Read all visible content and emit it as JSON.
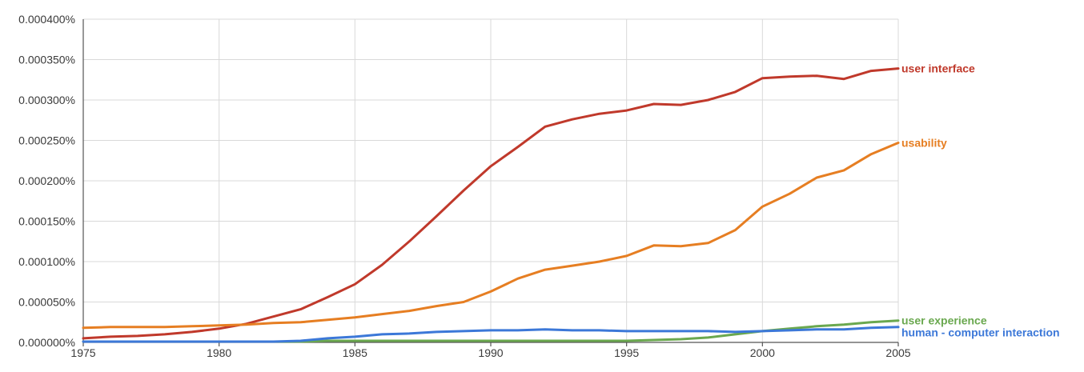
{
  "chart_data": {
    "type": "line",
    "title": "",
    "xlabel": "",
    "ylabel": "",
    "x": [
      1975,
      1976,
      1977,
      1978,
      1979,
      1980,
      1981,
      1982,
      1983,
      1984,
      1985,
      1986,
      1987,
      1988,
      1989,
      1990,
      1991,
      1992,
      1993,
      1994,
      1995,
      1996,
      1997,
      1998,
      1999,
      2000,
      2001,
      2002,
      2003,
      2004,
      2005
    ],
    "xlim": [
      1975,
      2005
    ],
    "ylim": [
      0,
      0.0004
    ],
    "x_ticks": [
      1975,
      1980,
      1985,
      1990,
      1995,
      2000,
      2005
    ],
    "x_tick_labels": [
      "1975",
      "1980",
      "1985",
      "1990",
      "1995",
      "2000",
      "2005"
    ],
    "y_ticks": [
      0,
      5e-05,
      0.0001,
      0.00015,
      0.0002,
      0.00025,
      0.0003,
      0.00035,
      0.0004
    ],
    "y_tick_labels": [
      "0.000000%",
      "0.000050%",
      "0.000100%",
      "0.000150%",
      "0.000200%",
      "0.000250%",
      "0.000300%",
      "0.000350%",
      "0.000400%"
    ],
    "grid": true,
    "legend": "inline-right",
    "series": [
      {
        "name": "user interface",
        "color": "#c0392b",
        "values": [
          5e-06,
          7e-06,
          8e-06,
          1e-05,
          1.3e-05,
          1.7e-05,
          2.3e-05,
          3.2e-05,
          4.1e-05,
          5.6e-05,
          7.2e-05,
          9.6e-05,
          0.000125,
          0.000156,
          0.000188,
          0.000218,
          0.000242,
          0.000267,
          0.000276,
          0.000283,
          0.000287,
          0.000295,
          0.000294,
          0.0003,
          0.00031,
          0.000327,
          0.000329,
          0.00033,
          0.000326,
          0.000336,
          0.000339
        ]
      },
      {
        "name": "usability",
        "color": "#e67e22",
        "values": [
          1.8e-05,
          1.9e-05,
          1.9e-05,
          1.9e-05,
          2e-05,
          2.1e-05,
          2.2e-05,
          2.4e-05,
          2.5e-05,
          2.8e-05,
          3.1e-05,
          3.5e-05,
          3.9e-05,
          4.5e-05,
          5e-05,
          6.3e-05,
          7.9e-05,
          9e-05,
          9.5e-05,
          0.0001,
          0.000107,
          0.00012,
          0.000119,
          0.000123,
          0.000139,
          0.000168,
          0.000184,
          0.000204,
          0.000213,
          0.000233,
          0.000247
        ]
      },
      {
        "name": "user experience",
        "color": "#6aa84f",
        "values": [
          1e-06,
          1e-06,
          1e-06,
          1e-06,
          1e-06,
          1e-06,
          1e-06,
          1e-06,
          1e-06,
          2e-06,
          2e-06,
          2e-06,
          2e-06,
          2e-06,
          2e-06,
          2e-06,
          2e-06,
          2e-06,
          2e-06,
          2e-06,
          2e-06,
          3e-06,
          4e-06,
          6e-06,
          1e-05,
          1.4e-05,
          1.7e-05,
          2e-05,
          2.2e-05,
          2.5e-05,
          2.7e-05
        ]
      },
      {
        "name": "human - computer interaction",
        "color": "#3c78d8",
        "values": [
          1e-06,
          1e-06,
          1e-06,
          1e-06,
          1e-06,
          1e-06,
          1e-06,
          1e-06,
          2e-06,
          5e-06,
          7e-06,
          1e-05,
          1.1e-05,
          1.3e-05,
          1.4e-05,
          1.5e-05,
          1.5e-05,
          1.6e-05,
          1.5e-05,
          1.5e-05,
          1.4e-05,
          1.4e-05,
          1.4e-05,
          1.4e-05,
          1.3e-05,
          1.4e-05,
          1.5e-05,
          1.6e-05,
          1.6e-05,
          1.8e-05,
          1.9e-05
        ]
      }
    ]
  }
}
